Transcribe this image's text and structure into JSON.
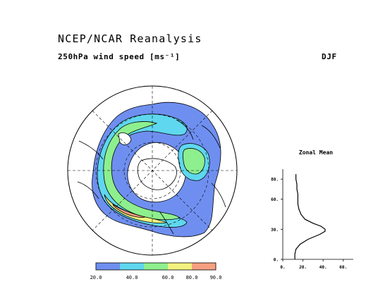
{
  "header": {
    "title": "NCEP/NCAR Reanalysis",
    "subtitle": "250hPa wind speed [ms⁻¹]",
    "season": "DJF"
  },
  "colorbar": {
    "ticks": [
      "20.0",
      "40.0",
      "60.0",
      "80.0",
      "90.0"
    ],
    "colors": [
      "#6f8ff0",
      "#5fd7ee",
      "#8eef8e",
      "#f2f27e",
      "#f5a080"
    ]
  },
  "zonal_mean": {
    "title": "Zonal Mean",
    "y_ticks": [
      {
        "label": "0.",
        "value": 0
      },
      {
        "label": "30.",
        "value": 30
      },
      {
        "label": "60.",
        "value": 60
      },
      {
        "label": "80.",
        "value": 80
      }
    ],
    "x_ticks": [
      {
        "label": "0.",
        "value": 0
      },
      {
        "label": "20.",
        "value": 20
      },
      {
        "label": "40.",
        "value": 40
      },
      {
        "label": "60.",
        "value": 60
      }
    ],
    "xlim": [
      0,
      70
    ],
    "ylim": [
      0,
      90
    ],
    "profile": {
      "lat": [
        0,
        5,
        10,
        15,
        20,
        25,
        28,
        30,
        33,
        36,
        40,
        45,
        50,
        55,
        60,
        65,
        70,
        75,
        80,
        85
      ],
      "speed": [
        12,
        12,
        13,
        17,
        25,
        37,
        42,
        42,
        38,
        30,
        22,
        18,
        16,
        15,
        15,
        15,
        14,
        14,
        13,
        13
      ]
    }
  }
}
